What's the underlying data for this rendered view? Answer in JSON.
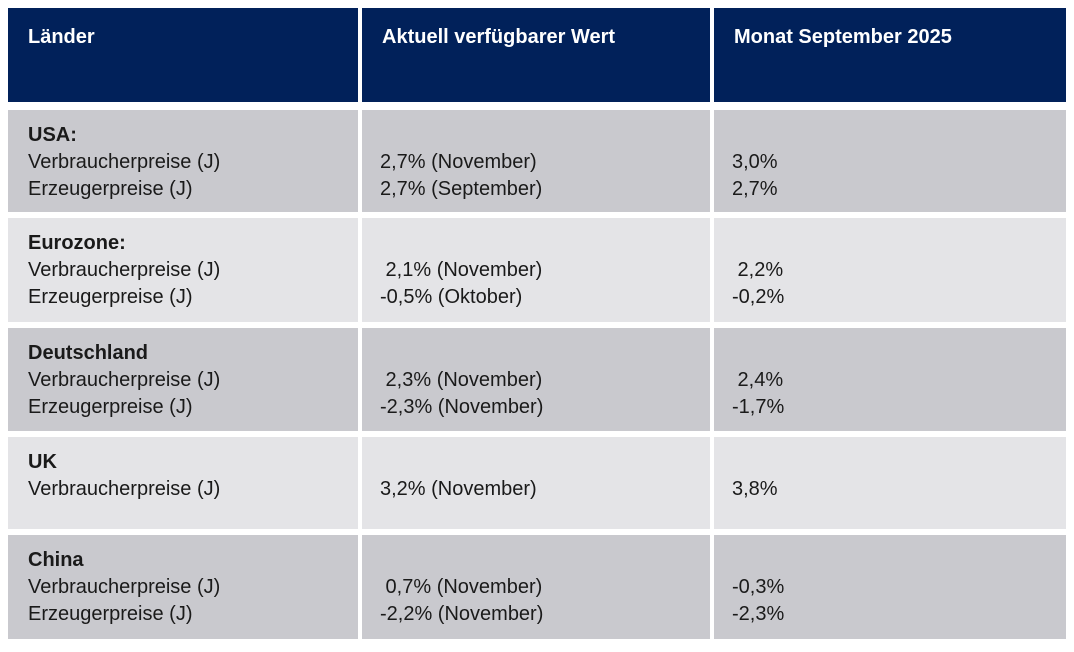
{
  "table": {
    "header": [
      "Länder",
      "Aktuell verfügbarer Wert",
      "Monat September 2025"
    ],
    "rows": [
      {
        "country": "USA:",
        "labels": "Verbraucherpreise (J)\nErzeugerpreise (J)",
        "current": "2,7% (November)\n2,7% (September)",
        "september": "3,0%\n2,7%"
      },
      {
        "country": "Eurozone:",
        "labels": "Verbraucherpreise (J)\nErzeugerpreise (J)",
        "current": " 2,1% (November)\n-0,5% (Oktober)",
        "september": " 2,2%\n-0,2%"
      },
      {
        "country": "Deutschland",
        "labels": "Verbraucherpreise (J)\nErzeugerpreise (J)",
        "current": " 2,3% (November)\n-2,3% (November)",
        "september": " 2,4%\n-1,7%"
      },
      {
        "country": "UK",
        "labels": "Verbraucherpreise (J)",
        "current": "3,2% (November)",
        "september": "3,8%"
      },
      {
        "country": "China",
        "labels": "Verbraucherpreise (J)\nErzeugerpreise (J)",
        "current": " 0,7% (November)\n-2,2% (November)",
        "september": "-0,3%\n-2,3%"
      }
    ]
  },
  "colors": {
    "header_bg": "#01215A",
    "header_text": "#FFFFFF",
    "row_dark": "#C9C9CE",
    "row_light": "#E4E4E7",
    "body_text": "#1A1A1A",
    "gap": "#FFFFFF"
  },
  "chart_data": {
    "type": "table",
    "columns": [
      "Länder",
      "Aktuell verfügbarer Wert",
      "Monat September 2025"
    ],
    "rows": [
      {
        "country": "USA",
        "metric": "Verbraucherpreise (J)",
        "aktuell_verfuegbarer_wert": "2,7% (November)",
        "monat_september_2025": "3,0%"
      },
      {
        "country": "USA",
        "metric": "Erzeugerpreise (J)",
        "aktuell_verfuegbarer_wert": "2,7% (September)",
        "monat_september_2025": "2,7%"
      },
      {
        "country": "Eurozone",
        "metric": "Verbraucherpreise (J)",
        "aktuell_verfuegbarer_wert": "2,1% (November)",
        "monat_september_2025": "2,2%"
      },
      {
        "country": "Eurozone",
        "metric": "Erzeugerpreise (J)",
        "aktuell_verfuegbarer_wert": "-0,5% (Oktober)",
        "monat_september_2025": "-0,2%"
      },
      {
        "country": "Deutschland",
        "metric": "Verbraucherpreise (J)",
        "aktuell_verfuegbarer_wert": "2,3% (November)",
        "monat_september_2025": "2,4%"
      },
      {
        "country": "Deutschland",
        "metric": "Erzeugerpreise (J)",
        "aktuell_verfuegbarer_wert": "-2,3% (November)",
        "monat_september_2025": "-1,7%"
      },
      {
        "country": "UK",
        "metric": "Verbraucherpreise (J)",
        "aktuell_verfuegbarer_wert": "3,2% (November)",
        "monat_september_2025": "3,8%"
      },
      {
        "country": "China",
        "metric": "Verbraucherpreise (J)",
        "aktuell_verfuegbarer_wert": "0,7% (November)",
        "monat_september_2025": "-0,3%"
      },
      {
        "country": "China",
        "metric": "Erzeugerpreise (J)",
        "aktuell_verfuegbarer_wert": "-2,2% (November)",
        "monat_september_2025": "-2,3%"
      }
    ]
  }
}
